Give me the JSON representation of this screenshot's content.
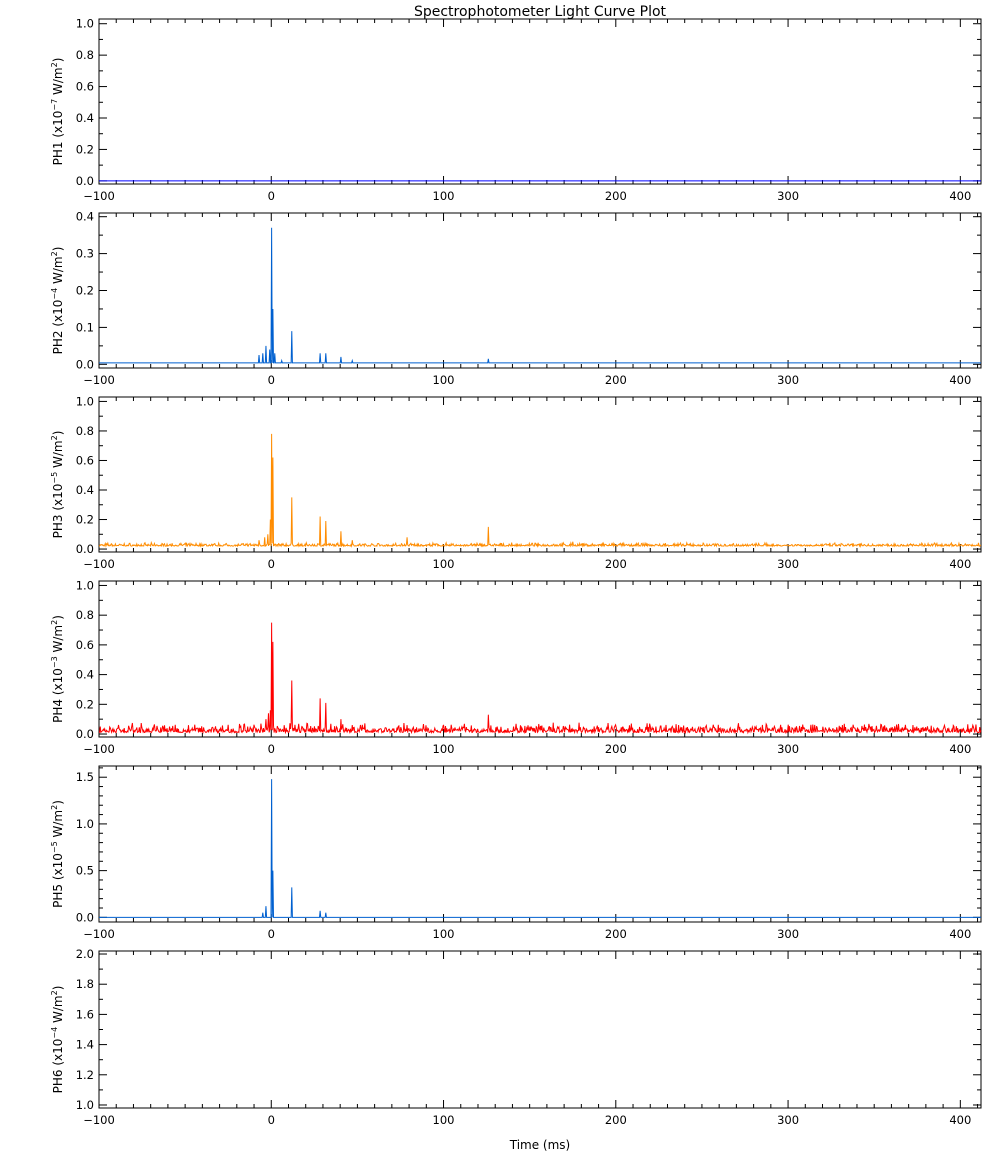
{
  "title": "Spectrophotometer Light Curve Plot",
  "xlabel": "Time (ms)",
  "chart_data": [
    {
      "type": "line",
      "name": "PH1",
      "ylabel_prefix": "PH1",
      "ylabel_unit": "(x10",
      "ylabel_exp": "−7",
      "ylabel_tail": " W/m",
      "ylabel_sq": "2",
      "ylabel_close": ")",
      "color": "#0000ff",
      "xlim": [
        -100,
        412
      ],
      "ylim": [
        -0.02,
        1.03
      ],
      "yticks": [
        0.0,
        0.2,
        0.4,
        0.6,
        0.8,
        1.0
      ],
      "ytick_labels": [
        "0.0",
        "0.2",
        "0.4",
        "0.6",
        "0.8",
        "1.0"
      ],
      "yminor_step": 0.1,
      "baseline": 0.0,
      "noise": 0.0,
      "spikes": []
    },
    {
      "type": "line",
      "name": "PH2",
      "ylabel_prefix": "PH2",
      "ylabel_unit": "(x10",
      "ylabel_exp": "−4",
      "ylabel_tail": " W/m",
      "ylabel_sq": "2",
      "ylabel_close": ")",
      "color": "#0060d0",
      "xlim": [
        -100,
        412
      ],
      "ylim": [
        -0.01,
        0.41
      ],
      "yticks": [
        0.0,
        0.1,
        0.2,
        0.3,
        0.4
      ],
      "ytick_labels": [
        "0.0",
        "0.1",
        "0.2",
        "0.3",
        "0.4"
      ],
      "yminor_step": 0.05,
      "baseline": 0.004,
      "noise": 0.0,
      "spikes": [
        {
          "t": -7,
          "v": 0.025
        },
        {
          "t": -5,
          "v": 0.03
        },
        {
          "t": -3,
          "v": 0.05
        },
        {
          "t": -1,
          "v": 0.04
        },
        {
          "t": 0.3,
          "v": 0.37
        },
        {
          "t": 0.8,
          "v": 0.15
        },
        {
          "t": 2,
          "v": 0.03
        },
        {
          "t": 6,
          "v": 0.01
        },
        {
          "t": 11.8,
          "v": 0.09
        },
        {
          "t": 28.5,
          "v": 0.03
        },
        {
          "t": 31.5,
          "v": 0.03
        },
        {
          "t": 40.5,
          "v": 0.02
        },
        {
          "t": 47,
          "v": 0.01
        },
        {
          "t": 126,
          "v": 0.015
        }
      ]
    },
    {
      "type": "line",
      "name": "PH3",
      "ylabel_prefix": "PH3",
      "ylabel_unit": "(x10",
      "ylabel_exp": "−5",
      "ylabel_tail": " W/m",
      "ylabel_sq": "2",
      "ylabel_close": ")",
      "color": "#ff8c00",
      "xlim": [
        -100,
        412
      ],
      "ylim": [
        -0.02,
        1.03
      ],
      "yticks": [
        0.0,
        0.2,
        0.4,
        0.6,
        0.8,
        1.0
      ],
      "ytick_labels": [
        "0.0",
        "0.2",
        "0.4",
        "0.6",
        "0.8",
        "1.0"
      ],
      "yminor_step": 0.1,
      "baseline": 0.02,
      "noise": 0.012,
      "spikes": [
        {
          "t": -7,
          "v": 0.06
        },
        {
          "t": -4,
          "v": 0.08
        },
        {
          "t": -2,
          "v": 0.1
        },
        {
          "t": 0.3,
          "v": 0.78
        },
        {
          "t": 0.8,
          "v": 0.62
        },
        {
          "t": -0.5,
          "v": 0.2
        },
        {
          "t": 11.8,
          "v": 0.35
        },
        {
          "t": 28.5,
          "v": 0.22
        },
        {
          "t": 31.5,
          "v": 0.19
        },
        {
          "t": 40.5,
          "v": 0.12
        },
        {
          "t": 47,
          "v": 0.06
        },
        {
          "t": 79,
          "v": 0.08
        },
        {
          "t": 126,
          "v": 0.15
        },
        {
          "t": 175,
          "v": 0.05
        }
      ]
    },
    {
      "type": "line",
      "name": "PH4",
      "ylabel_prefix": "PH4",
      "ylabel_unit": "(x10",
      "ylabel_exp": "−3",
      "ylabel_tail": " W/m",
      "ylabel_sq": "2",
      "ylabel_close": ")",
      "color": "#ff0000",
      "xlim": [
        -100,
        412
      ],
      "ylim": [
        -0.02,
        1.03
      ],
      "yticks": [
        0.0,
        0.2,
        0.4,
        0.6,
        0.8,
        1.0
      ],
      "ytick_labels": [
        "0.0",
        "0.2",
        "0.4",
        "0.6",
        "0.8",
        "1.0"
      ],
      "yminor_step": 0.1,
      "baseline": 0.01,
      "noise": 0.035,
      "spikes": [
        {
          "t": -6,
          "v": 0.07
        },
        {
          "t": -3,
          "v": 0.1
        },
        {
          "t": -1.5,
          "v": 0.14
        },
        {
          "t": 0.3,
          "v": 0.75
        },
        {
          "t": 0.8,
          "v": 0.62
        },
        {
          "t": -0.5,
          "v": 0.16
        },
        {
          "t": 11.8,
          "v": 0.36
        },
        {
          "t": 28.5,
          "v": 0.24
        },
        {
          "t": 31.5,
          "v": 0.21
        },
        {
          "t": 40.5,
          "v": 0.1
        },
        {
          "t": 47,
          "v": 0.06
        },
        {
          "t": 79,
          "v": 0.06
        },
        {
          "t": 126,
          "v": 0.13
        }
      ]
    },
    {
      "type": "line",
      "name": "PH5",
      "ylabel_prefix": "PH5",
      "ylabel_unit": "(x10",
      "ylabel_exp": "−5",
      "ylabel_tail": " W/m",
      "ylabel_sq": "2",
      "ylabel_close": ")",
      "color": "#0060d0",
      "xlim": [
        -100,
        412
      ],
      "ylim": [
        -0.05,
        1.62
      ],
      "yticks": [
        0.0,
        0.5,
        1.0,
        1.5
      ],
      "ytick_labels": [
        "0.0",
        "0.5",
        "1.0",
        "1.5"
      ],
      "yminor_step": 0.1,
      "baseline": 0.0,
      "noise": 0.0,
      "spikes": [
        {
          "t": -5,
          "v": 0.05
        },
        {
          "t": -3,
          "v": 0.12
        },
        {
          "t": 0.3,
          "v": 1.48
        },
        {
          "t": 0.8,
          "v": 0.5
        },
        {
          "t": 11.8,
          "v": 0.32
        },
        {
          "t": 28.5,
          "v": 0.07
        },
        {
          "t": 31.5,
          "v": 0.05
        }
      ]
    },
    {
      "type": "line",
      "name": "PH6",
      "ylabel_prefix": "PH6",
      "ylabel_unit": "(x10",
      "ylabel_exp": "−4",
      "ylabel_tail": " W/m",
      "ylabel_sq": "2",
      "ylabel_close": ")",
      "color": "#0000ff",
      "xlim": [
        -100,
        412
      ],
      "ylim": [
        0.98,
        2.02
      ],
      "yticks": [
        1.0,
        1.2,
        1.4,
        1.6,
        1.8,
        2.0
      ],
      "ytick_labels": [
        "1.0",
        "1.2",
        "1.4",
        "1.6",
        "1.8",
        "2.0"
      ],
      "yminor_step": 0.1,
      "baseline": null,
      "noise": 0.0,
      "spikes": []
    }
  ],
  "xticks": [
    -100,
    0,
    100,
    200,
    300,
    400
  ],
  "xtick_labels": [
    "−100",
    "0",
    "100",
    "200",
    "300",
    "400"
  ],
  "xminor_step": 10
}
